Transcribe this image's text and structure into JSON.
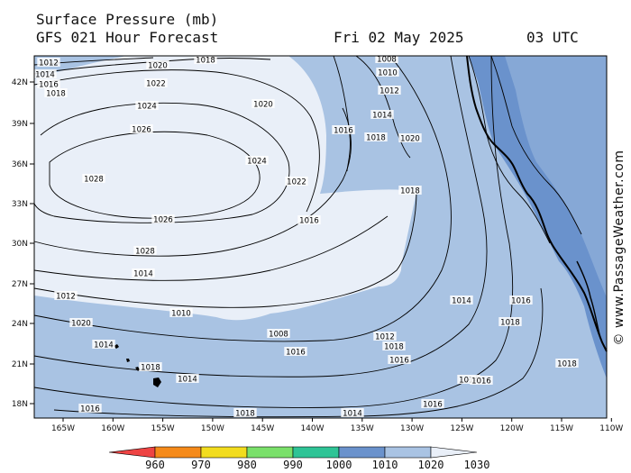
{
  "title": "Surface Pressure (mb)",
  "model": "GFS 021 Hour Forecast",
  "date": "Fri 02 May 2025",
  "time": "03 UTC",
  "credit": "© www.PassageWeather.com",
  "lat_labels": [
    "42N",
    "39N",
    "36N",
    "33N",
    "30N",
    "27N",
    "24N",
    "21N",
    "18N"
  ],
  "lon_labels": [
    "165W",
    "160W",
    "155W",
    "150W",
    "145W",
    "140W",
    "135W",
    "130W",
    "125W",
    "120W",
    "115W",
    "110W"
  ],
  "colorbar": {
    "labels": [
      "960",
      "970",
      "980",
      "990",
      "1000",
      "1010",
      "1020",
      "1030"
    ],
    "colors": [
      "#ee4444",
      "#f58a1a",
      "#f2dc1e",
      "#7ae06a",
      "#2ec496",
      "#6a92cc",
      "#a9c3e3",
      "#e9eff8"
    ]
  },
  "fill_colors": {
    "lt1010": "#6a92cc",
    "1010_1020": "#a9c3e3",
    "gt1020": "#e9eff8"
  },
  "contour_labels": [
    "1012",
    "1014",
    "1016",
    "1018",
    "1020",
    "1022",
    "1024",
    "1026",
    "1028",
    "1020",
    "1022",
    "1024",
    "1026",
    "1028",
    "1018",
    "1008",
    "1010",
    "1012",
    "1014",
    "1016",
    "1018",
    "1020",
    "1018",
    "1016",
    "1014",
    "1012",
    "1010",
    "1008",
    "1012",
    "1014",
    "1016",
    "1018",
    "1020",
    "1018",
    "1016",
    "1014",
    "1016",
    "1018",
    "1014",
    "1016",
    "1018",
    "1016",
    "1014",
    "1016",
    "1018",
    "1014"
  ]
}
